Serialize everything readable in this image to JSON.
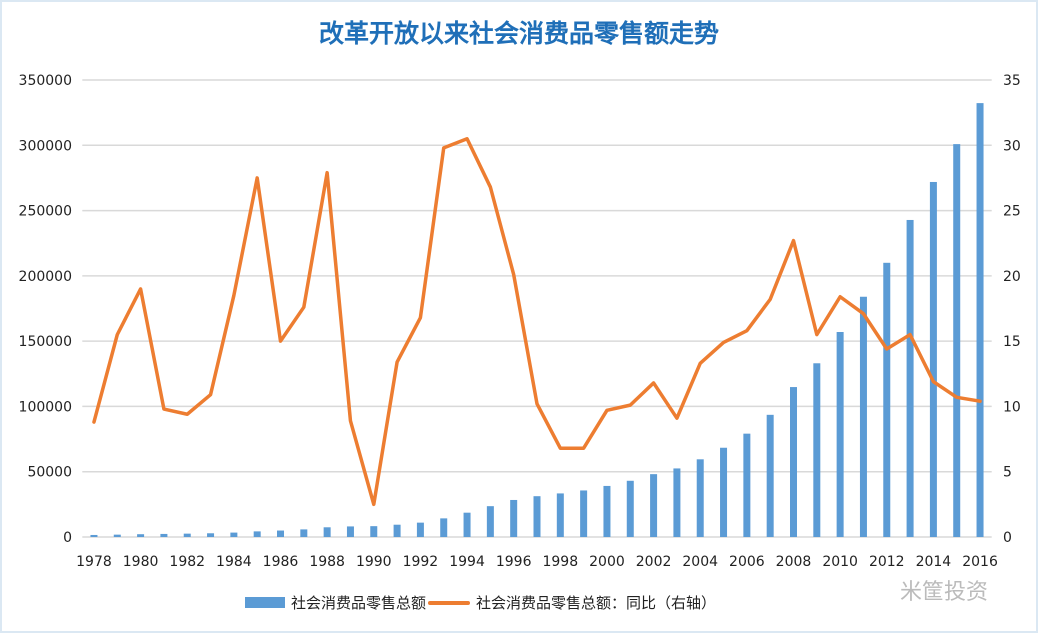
{
  "chart_data": {
    "type": "bar+line",
    "title": "改革开放以来社会消费品零售额走势",
    "categories": [
      "1978",
      "1979",
      "1980",
      "1981",
      "1982",
      "1983",
      "1984",
      "1985",
      "1986",
      "1987",
      "1988",
      "1989",
      "1990",
      "1991",
      "1992",
      "1993",
      "1994",
      "1995",
      "1996",
      "1997",
      "1998",
      "1999",
      "2000",
      "2001",
      "2002",
      "2003",
      "2004",
      "2005",
      "2006",
      "2007",
      "2008",
      "2009",
      "2010",
      "2011",
      "2012",
      "2013",
      "2014",
      "2015",
      "2016"
    ],
    "x_tick_labels": [
      "1978",
      "1980",
      "1982",
      "1984",
      "1986",
      "1988",
      "1990",
      "1992",
      "1994",
      "1996",
      "1998",
      "2000",
      "2002",
      "2004",
      "2006",
      "2008",
      "2010",
      "2012",
      "2014",
      "2016"
    ],
    "series": [
      {
        "name": "社会消费品零售总额",
        "type": "bar",
        "axis": "left",
        "color": "#5b9bd5",
        "values": [
          1559,
          1800,
          2140,
          2350,
          2570,
          2849,
          3376,
          4305,
          4950,
          5820,
          7440,
          8101,
          8300,
          9416,
          10994,
          14270,
          18623,
          23614,
          28360,
          31253,
          33378,
          35648,
          39106,
          43055,
          48136,
          52516,
          59501,
          68353,
          79145,
          93572,
          114830,
          133048,
          157000,
          184000,
          210000,
          242800,
          271900,
          300900,
          332300
        ]
      },
      {
        "name": "社会消费品零售总额：同比（右轴）",
        "type": "line",
        "axis": "right",
        "color": "#ed7d31",
        "values": [
          8.8,
          15.5,
          19.0,
          9.8,
          9.4,
          10.9,
          18.5,
          27.5,
          15.0,
          17.6,
          27.9,
          8.9,
          2.5,
          13.4,
          16.8,
          29.8,
          30.5,
          26.8,
          20.1,
          10.2,
          6.8,
          6.8,
          9.7,
          10.1,
          11.8,
          9.1,
          13.3,
          14.9,
          15.8,
          18.2,
          22.7,
          15.5,
          18.4,
          17.1,
          14.4,
          15.5,
          11.9,
          10.7,
          10.4
        ]
      }
    ],
    "left_axis": {
      "ylim": [
        0,
        350000
      ],
      "ticks": [
        "0",
        "50000",
        "100000",
        "150000",
        "200000",
        "250000",
        "300000",
        "350000"
      ]
    },
    "right_axis": {
      "ylim": [
        0,
        35
      ],
      "ticks": [
        "0",
        "5",
        "10",
        "15",
        "20",
        "25",
        "30",
        "35"
      ]
    },
    "grid": true,
    "legend": "bottom"
  },
  "watermark": "米筐投资"
}
